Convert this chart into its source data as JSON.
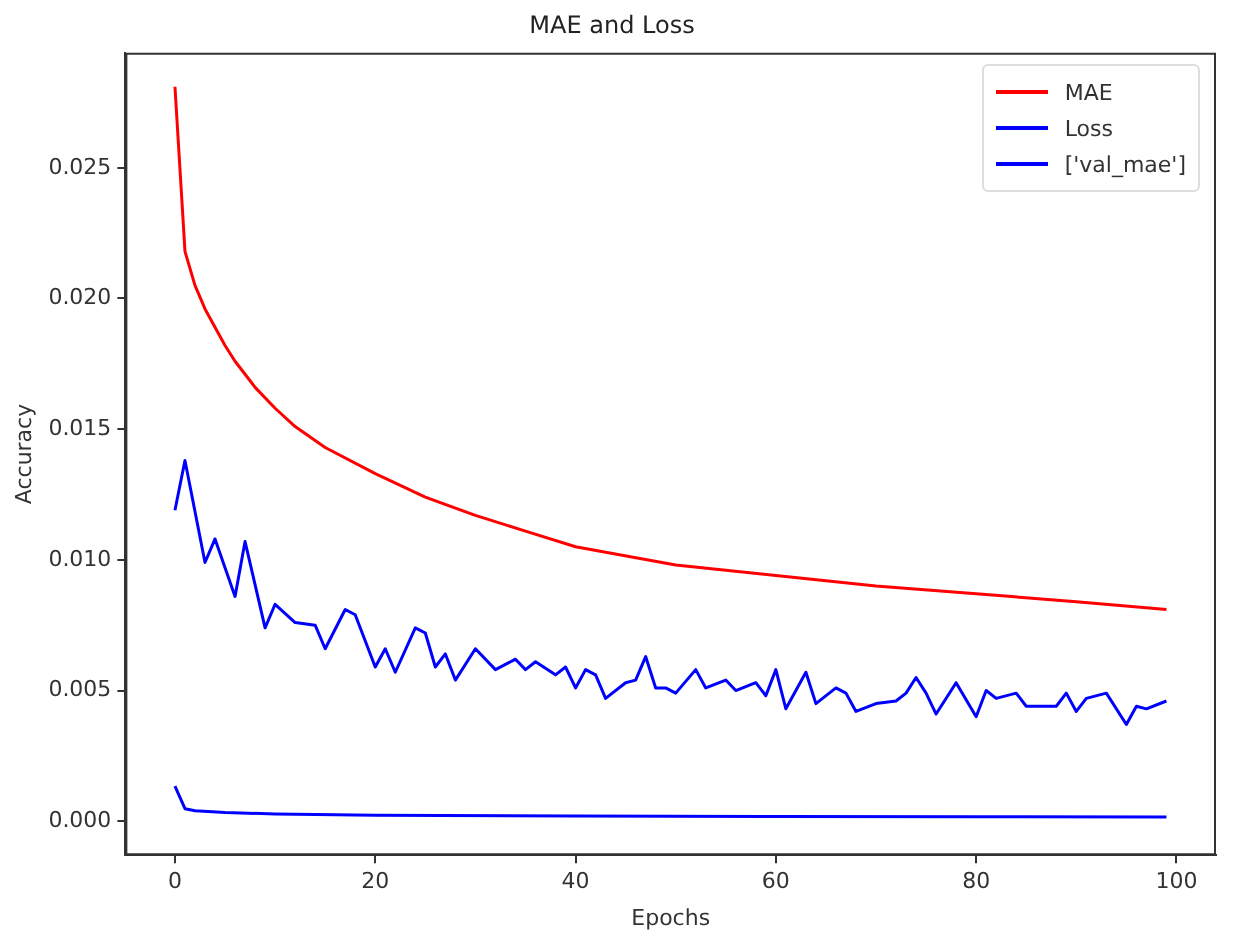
{
  "chart_data": {
    "type": "line",
    "title": "MAE and Loss",
    "xlabel": "Epochs",
    "ylabel": "Accuracy",
    "xlim": [
      -4.95,
      103.95
    ],
    "xticks": [
      0,
      20,
      40,
      60,
      80,
      100
    ],
    "ylim": [
      -0.0013,
      0.0294
    ],
    "yticks": [
      {
        "value": 0,
        "label": "0.000"
      },
      0.005,
      {
        "value": 0.01,
        "label": "0.010"
      },
      0.015,
      {
        "value": 0.02,
        "label": "0.020"
      },
      0.025
    ],
    "grid": false,
    "legend": "top right",
    "marker": "none",
    "line_style": "solid",
    "series": [
      {
        "name": "MAE",
        "color": "#ff0000",
        "x": [
          0,
          1,
          2,
          3,
          4,
          5,
          6,
          7,
          8,
          10,
          12,
          15,
          20,
          25,
          30,
          35,
          40,
          50,
          60,
          70,
          80,
          90,
          99
        ],
        "values": [
          0.0281,
          0.0218,
          0.0205,
          0.0196,
          0.0189,
          0.0182,
          0.0176,
          0.0171,
          0.0166,
          0.0158,
          0.0151,
          0.0143,
          0.0133,
          0.0124,
          0.0117,
          0.0111,
          0.0105,
          0.0098,
          0.0094,
          0.009,
          0.0087,
          0.0084,
          0.0081
        ]
      },
      {
        "name": "Loss",
        "color": "#0000ff",
        "x": [
          0,
          1,
          3,
          4,
          6,
          7,
          9,
          10,
          12,
          14,
          15,
          17,
          18,
          20,
          21,
          22,
          24,
          25,
          26,
          27,
          28,
          30,
          32,
          34,
          35,
          36,
          38,
          39,
          40,
          41,
          42,
          43,
          45,
          46,
          47,
          48,
          49,
          50,
          52,
          53,
          55,
          56,
          58,
          59,
          60,
          61,
          63,
          64,
          66,
          67,
          68,
          70,
          72,
          73,
          74,
          75,
          76,
          78,
          80,
          81,
          82,
          84,
          85,
          88,
          89,
          90,
          91,
          93,
          95,
          96,
          97,
          99
        ],
        "values": [
          0.0119,
          0.0138,
          0.0099,
          0.0108,
          0.0086,
          0.0107,
          0.0074,
          0.0083,
          0.0076,
          0.0075,
          0.0066,
          0.0081,
          0.0079,
          0.0059,
          0.0066,
          0.0057,
          0.0074,
          0.0072,
          0.0059,
          0.0064,
          0.0054,
          0.0066,
          0.0058,
          0.0062,
          0.0058,
          0.0061,
          0.0056,
          0.0059,
          0.0051,
          0.0058,
          0.0056,
          0.0047,
          0.0053,
          0.0054,
          0.0063,
          0.0051,
          0.0051,
          0.0049,
          0.0058,
          0.0051,
          0.0054,
          0.005,
          0.0053,
          0.0048,
          0.0058,
          0.0043,
          0.0057,
          0.0045,
          0.0051,
          0.0049,
          0.0042,
          0.0045,
          0.0046,
          0.0049,
          0.0055,
          0.0049,
          0.0041,
          0.0053,
          0.004,
          0.005,
          0.0047,
          0.0049,
          0.0044,
          0.0044,
          0.0049,
          0.0042,
          0.0047,
          0.0049,
          0.0037,
          0.0044,
          0.0043,
          0.0046
        ]
      },
      {
        "name": "['val_mae']",
        "color": "#0000ff",
        "x": [
          0,
          1,
          2,
          5,
          10,
          20,
          40,
          60,
          80,
          99
        ],
        "values": [
          0.00134,
          0.00048,
          0.0004,
          0.00033,
          0.00028,
          0.00023,
          0.0002,
          0.00018,
          0.00017,
          0.00016
        ]
      }
    ]
  }
}
